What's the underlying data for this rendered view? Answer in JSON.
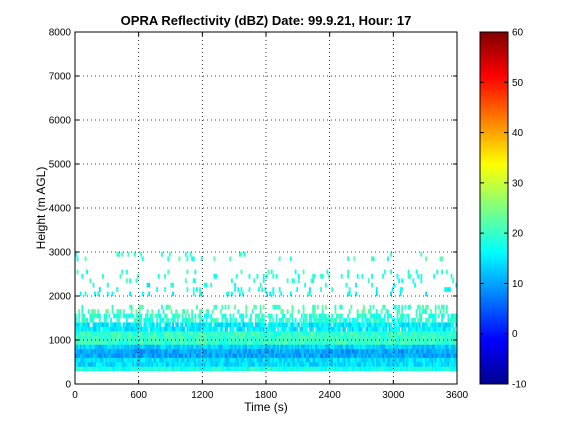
{
  "chart_data": {
    "type": "heatmap",
    "title": "OPRA Reflectivity (dBZ)  Date: 99.9.21, Hour: 17",
    "xlabel": "Time (s)",
    "ylabel": "Height (m AGL)",
    "xlim": [
      0,
      3600
    ],
    "ylim": [
      0,
      8000
    ],
    "xticks": [
      "0",
      "600",
      "1200",
      "1800",
      "2400",
      "3000",
      "3600"
    ],
    "yticks": [
      "0",
      "1000",
      "2000",
      "3000",
      "4000",
      "5000",
      "6000",
      "7000",
      "8000"
    ],
    "grid": true,
    "colorbar": {
      "min": -10,
      "max": 60,
      "ticks": [
        "-10",
        "0",
        "10",
        "20",
        "30",
        "40",
        "50",
        "60"
      ],
      "colormap": "jet"
    },
    "layers": [
      {
        "y_range": [
          300,
          400
        ],
        "dbz": 18,
        "coverage": 1.0
      },
      {
        "y_range": [
          400,
          600
        ],
        "dbz": 14,
        "coverage": 1.0
      },
      {
        "y_range": [
          600,
          800
        ],
        "dbz": 10,
        "coverage": 1.0
      },
      {
        "y_range": [
          800,
          900
        ],
        "dbz": 13,
        "coverage": 1.0
      },
      {
        "y_range": [
          900,
          1200
        ],
        "dbz": 20,
        "coverage": 1.0
      },
      {
        "y_range": [
          1200,
          1400
        ],
        "dbz": 15,
        "coverage": 0.9
      },
      {
        "y_range": [
          1400,
          1600
        ],
        "dbz": 19,
        "coverage": 0.6
      },
      {
        "y_range": [
          1600,
          1800
        ],
        "dbz": 21,
        "coverage": 0.25
      },
      {
        "y_range": [
          2000,
          2300
        ],
        "dbz": 17,
        "coverage": 0.12
      },
      {
        "y_range": [
          2300,
          2600
        ],
        "dbz": 19,
        "coverage": 0.12
      },
      {
        "y_range": [
          2800,
          3000
        ],
        "dbz": 20,
        "coverage": 0.05
      }
    ]
  }
}
